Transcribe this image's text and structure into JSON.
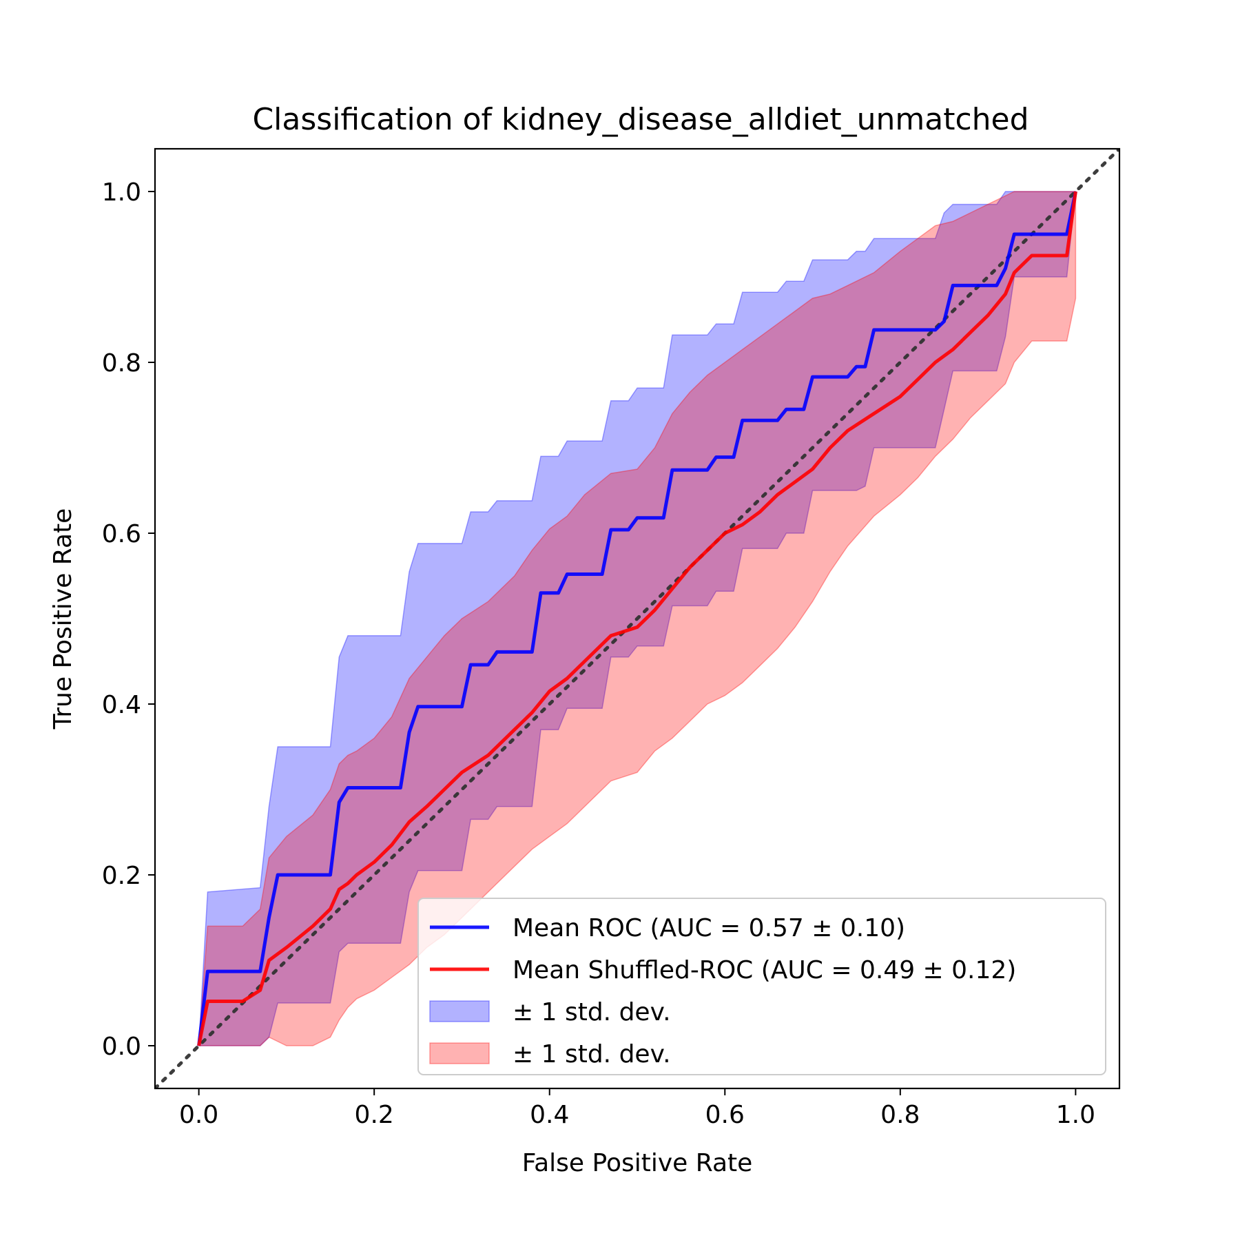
{
  "chart_data": {
    "type": "line",
    "title": "Classification of kidney_disease_alldiet_unmatched",
    "xlabel": "False Positive Rate",
    "ylabel": "True Positive Rate",
    "xlim": [
      -0.05,
      1.05
    ],
    "ylim": [
      -0.05,
      1.05
    ],
    "xticks": [
      "0.0",
      "0.2",
      "0.4",
      "0.6",
      "0.8",
      "1.0"
    ],
    "yticks": [
      "0.0",
      "0.2",
      "0.4",
      "0.6",
      "0.8",
      "1.0"
    ],
    "grid": false,
    "legend_position": "bottom-right",
    "colors": {
      "roc": "#0000ff",
      "shuffled": "#ff0000",
      "roc_band": "#0000ff",
      "shuffled_band": "#ff0000",
      "chance": "#333333"
    },
    "series": [
      {
        "name": "Mean ROC (AUC = 0.57 ± 0.10)",
        "x": [
          0,
          0.01,
          0.07,
          0.08,
          0.09,
          0.15,
          0.16,
          0.17,
          0.23,
          0.24,
          0.25,
          0.3,
          0.31,
          0.33,
          0.34,
          0.38,
          0.39,
          0.41,
          0.42,
          0.46,
          0.47,
          0.49,
          0.5,
          0.53,
          0.54,
          0.58,
          0.59,
          0.61,
          0.62,
          0.66,
          0.67,
          0.69,
          0.7,
          0.74,
          0.75,
          0.76,
          0.77,
          0.84,
          0.85,
          0.86,
          0.91,
          0.92,
          0.93,
          0.99,
          1.0
        ],
        "y": [
          0,
          0.087,
          0.087,
          0.15,
          0.2,
          0.2,
          0.285,
          0.302,
          0.302,
          0.367,
          0.397,
          0.397,
          0.446,
          0.446,
          0.461,
          0.461,
          0.53,
          0.53,
          0.552,
          0.552,
          0.604,
          0.604,
          0.618,
          0.618,
          0.674,
          0.674,
          0.689,
          0.689,
          0.732,
          0.732,
          0.745,
          0.745,
          0.783,
          0.783,
          0.795,
          0.795,
          0.838,
          0.838,
          0.848,
          0.89,
          0.89,
          0.91,
          0.95,
          0.95,
          1.0
        ]
      },
      {
        "name": "Mean Shuffled-ROC (AUC = 0.49 ± 0.12)",
        "x": [
          0,
          0.01,
          0.05,
          0.07,
          0.08,
          0.1,
          0.13,
          0.15,
          0.16,
          0.17,
          0.18,
          0.2,
          0.22,
          0.24,
          0.26,
          0.28,
          0.3,
          0.33,
          0.36,
          0.38,
          0.4,
          0.42,
          0.44,
          0.47,
          0.5,
          0.52,
          0.54,
          0.56,
          0.58,
          0.6,
          0.62,
          0.64,
          0.66,
          0.68,
          0.7,
          0.72,
          0.74,
          0.77,
          0.8,
          0.82,
          0.84,
          0.86,
          0.88,
          0.9,
          0.92,
          0.93,
          0.95,
          0.99,
          1.0
        ],
        "y": [
          0,
          0.052,
          0.052,
          0.065,
          0.1,
          0.115,
          0.14,
          0.16,
          0.183,
          0.19,
          0.2,
          0.215,
          0.235,
          0.262,
          0.28,
          0.3,
          0.32,
          0.34,
          0.37,
          0.39,
          0.415,
          0.43,
          0.45,
          0.48,
          0.49,
          0.51,
          0.535,
          0.56,
          0.58,
          0.6,
          0.61,
          0.625,
          0.645,
          0.66,
          0.675,
          0.7,
          0.72,
          0.74,
          0.76,
          0.78,
          0.8,
          0.815,
          0.835,
          0.855,
          0.88,
          0.905,
          0.925,
          0.925,
          1.0
        ]
      }
    ],
    "bands": [
      {
        "name": "± 1 std. dev.",
        "x": [
          0,
          0.01,
          0.07,
          0.08,
          0.09,
          0.15,
          0.16,
          0.17,
          0.23,
          0.24,
          0.25,
          0.3,
          0.31,
          0.33,
          0.34,
          0.38,
          0.39,
          0.41,
          0.42,
          0.46,
          0.47,
          0.49,
          0.5,
          0.53,
          0.54,
          0.58,
          0.59,
          0.61,
          0.62,
          0.66,
          0.67,
          0.69,
          0.7,
          0.74,
          0.75,
          0.76,
          0.77,
          0.84,
          0.85,
          0.86,
          0.91,
          0.92,
          0.93,
          0.99,
          1.0
        ],
        "upper": [
          0,
          0.18,
          0.185,
          0.28,
          0.35,
          0.35,
          0.455,
          0.48,
          0.48,
          0.555,
          0.588,
          0.588,
          0.625,
          0.625,
          0.638,
          0.638,
          0.69,
          0.69,
          0.708,
          0.708,
          0.755,
          0.755,
          0.77,
          0.77,
          0.832,
          0.832,
          0.845,
          0.845,
          0.882,
          0.882,
          0.895,
          0.895,
          0.92,
          0.92,
          0.93,
          0.93,
          0.945,
          0.945,
          0.975,
          0.985,
          0.985,
          1.0,
          1.0,
          1.0,
          1.0
        ],
        "lower": [
          0,
          0,
          0,
          0.01,
          0.05,
          0.05,
          0.11,
          0.12,
          0.12,
          0.18,
          0.205,
          0.205,
          0.265,
          0.265,
          0.28,
          0.28,
          0.37,
          0.37,
          0.395,
          0.395,
          0.455,
          0.455,
          0.468,
          0.468,
          0.515,
          0.515,
          0.532,
          0.532,
          0.582,
          0.582,
          0.6,
          0.6,
          0.65,
          0.65,
          0.65,
          0.655,
          0.7,
          0.7,
          0.745,
          0.79,
          0.79,
          0.83,
          0.9,
          0.9,
          1.0
        ],
        "color": "#0000ff"
      },
      {
        "name": "± 1 std. dev.",
        "x": [
          0,
          0.01,
          0.05,
          0.07,
          0.08,
          0.1,
          0.13,
          0.15,
          0.16,
          0.17,
          0.18,
          0.2,
          0.22,
          0.24,
          0.26,
          0.28,
          0.3,
          0.33,
          0.36,
          0.38,
          0.4,
          0.42,
          0.44,
          0.47,
          0.5,
          0.52,
          0.54,
          0.56,
          0.58,
          0.6,
          0.62,
          0.64,
          0.66,
          0.68,
          0.7,
          0.72,
          0.74,
          0.77,
          0.8,
          0.82,
          0.84,
          0.86,
          0.88,
          0.9,
          0.92,
          0.93,
          0.95,
          0.99,
          1.0
        ],
        "upper": [
          0,
          0.14,
          0.14,
          0.16,
          0.22,
          0.245,
          0.27,
          0.3,
          0.33,
          0.34,
          0.345,
          0.36,
          0.385,
          0.43,
          0.455,
          0.48,
          0.5,
          0.52,
          0.55,
          0.58,
          0.605,
          0.62,
          0.645,
          0.67,
          0.675,
          0.7,
          0.74,
          0.765,
          0.785,
          0.8,
          0.815,
          0.83,
          0.845,
          0.86,
          0.875,
          0.88,
          0.89,
          0.905,
          0.93,
          0.945,
          0.96,
          0.965,
          0.975,
          0.985,
          0.995,
          1.0,
          1.0,
          1.0,
          1.0
        ],
        "lower": [
          0,
          0,
          0,
          0,
          0.01,
          0.0,
          0.0,
          0.01,
          0.03,
          0.045,
          0.055,
          0.065,
          0.08,
          0.095,
          0.115,
          0.13,
          0.15,
          0.18,
          0.21,
          0.23,
          0.245,
          0.26,
          0.28,
          0.31,
          0.32,
          0.345,
          0.36,
          0.38,
          0.4,
          0.41,
          0.425,
          0.445,
          0.465,
          0.49,
          0.52,
          0.555,
          0.585,
          0.62,
          0.645,
          0.665,
          0.69,
          0.71,
          0.735,
          0.755,
          0.775,
          0.8,
          0.825,
          0.825,
          0.875
        ],
        "color": "#ff0000"
      }
    ],
    "chance_line": {
      "x": [
        -0.05,
        1.05
      ],
      "y": [
        -0.05,
        1.05
      ]
    },
    "legend": [
      {
        "label": "Mean ROC (AUC = 0.57 ± 0.10)",
        "kind": "line",
        "color": "#0000ff"
      },
      {
        "label": "Mean Shuffled-ROC (AUC = 0.49 ± 0.12)",
        "kind": "line",
        "color": "#ff0000"
      },
      {
        "label": "± 1 std. dev.",
        "kind": "patch",
        "color": "#0000ff"
      },
      {
        "label": "± 1 std. dev.",
        "kind": "patch",
        "color": "#ff0000"
      }
    ]
  }
}
